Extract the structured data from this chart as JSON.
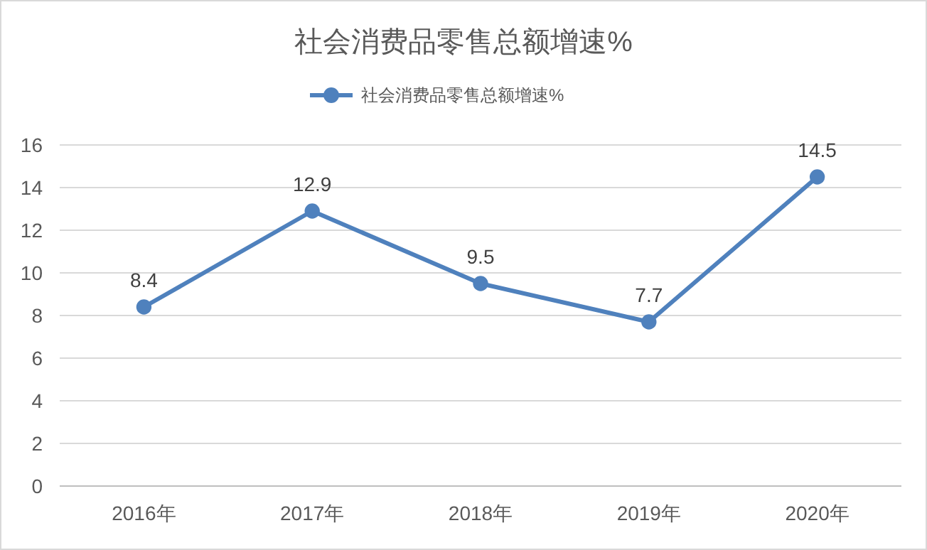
{
  "chart_data": {
    "type": "line",
    "title": "社会消费品零售总额增速%",
    "categories": [
      "2016年",
      "2017年",
      "2018年",
      "2019年",
      "2020年"
    ],
    "series": [
      {
        "name": "社会消费品零售总额增速%",
        "color": "#4f81bd",
        "values": [
          8.4,
          12.9,
          9.5,
          7.7,
          14.5
        ]
      }
    ],
    "ylim": [
      0,
      16
    ],
    "yticks": [
      0,
      2,
      4,
      6,
      8,
      10,
      12,
      14,
      16
    ],
    "grid": "y",
    "legend": "top",
    "marker": "circle",
    "line_style": "solid",
    "data_labels": true
  }
}
